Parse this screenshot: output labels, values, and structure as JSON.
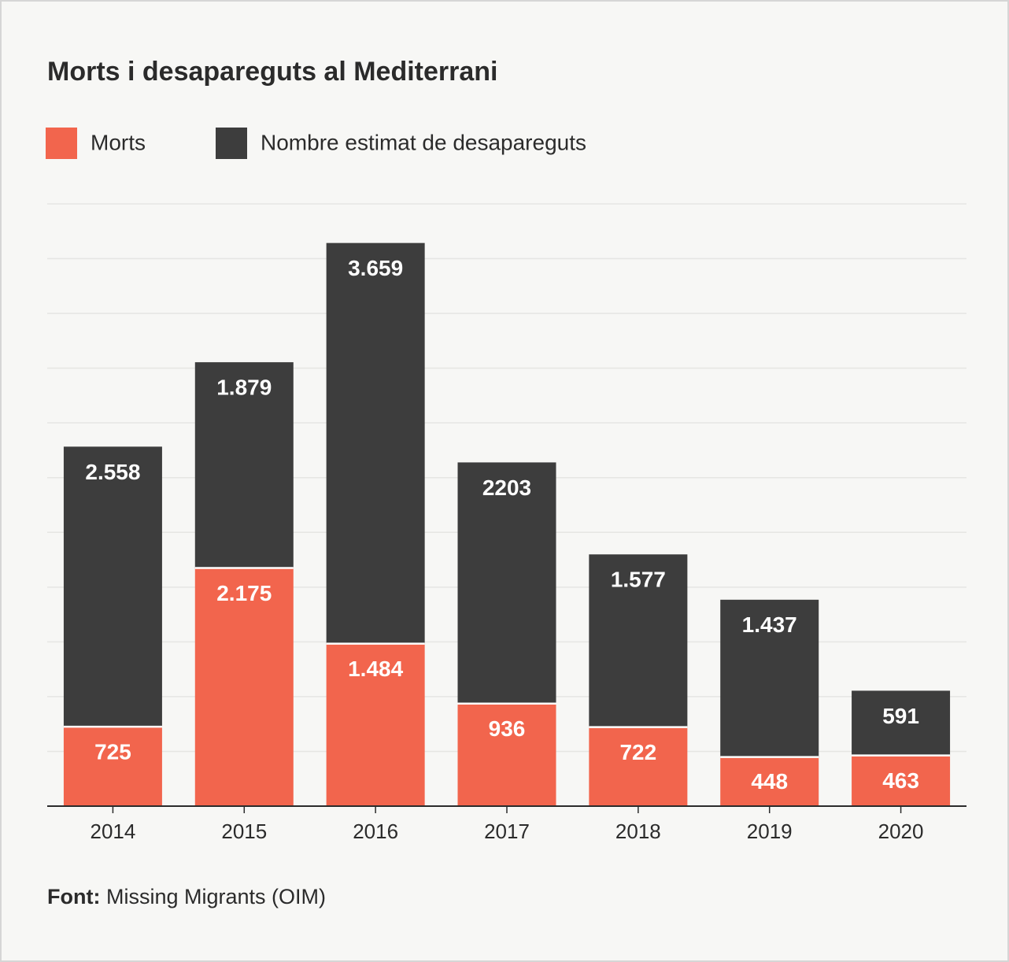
{
  "chart_data": {
    "type": "stacked_bar",
    "title": "Morts i desapareguts al Mediterrani",
    "categories": [
      "2014",
      "2015",
      "2016",
      "2017",
      "2018",
      "2019",
      "2020"
    ],
    "series": [
      {
        "name": "Morts",
        "color": "#f2654d",
        "values": [
          725,
          2175,
          1484,
          936,
          722,
          448,
          463
        ],
        "value_labels": [
          "725",
          "2.175",
          "1.484",
          "936",
          "722",
          "448",
          "463"
        ]
      },
      {
        "name": "Nombre estimat de desapareguts",
        "color": "#3d3d3d",
        "values": [
          2558,
          1879,
          3659,
          2203,
          1577,
          1437,
          591
        ],
        "value_labels": [
          "2.558",
          "1.879",
          "3.659",
          "2203",
          "1.577",
          "1.437",
          "591"
        ]
      }
    ],
    "ylim": [
      0,
      5500
    ],
    "yticks": [
      0,
      500,
      1000,
      1500,
      2000,
      2500,
      3000,
      3500,
      4000,
      4500,
      5000,
      5500
    ],
    "grid": true,
    "source_label": "Font:",
    "source": "Missing Migrants (OIM)"
  }
}
